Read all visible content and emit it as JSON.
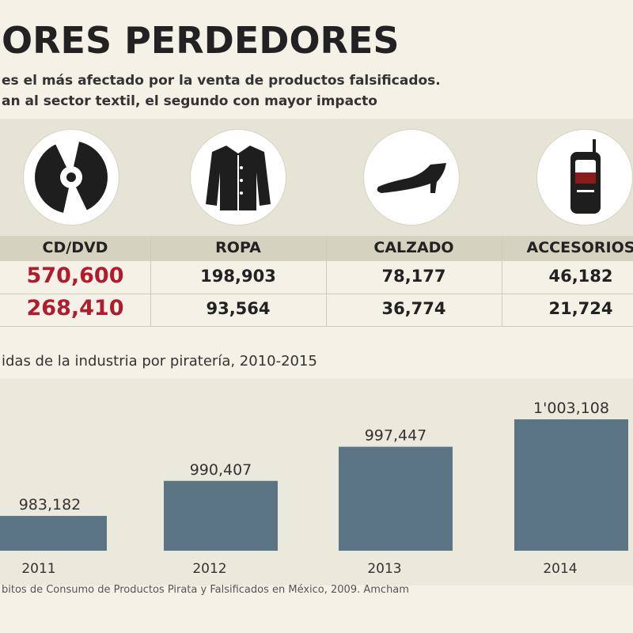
{
  "header": {
    "title": "ORES PERDEDORES",
    "subtitle_1": "es el más afectado por la venta de productos falsificados.",
    "subtitle_2": "an al sector textil, el segundo con mayor impacto"
  },
  "icons": [
    "cd-dvd-icon",
    "jacket-icon",
    "high-heel-shoe-icon",
    "cell-phone-icon"
  ],
  "table": {
    "columns": [
      "CD/DVD",
      "ROPA",
      "CALZADO",
      "ACCESORIOS"
    ],
    "rows": [
      [
        "570,600",
        "198,903",
        "78,177",
        "46,182"
      ],
      [
        "268,410",
        "93,564",
        "36,774",
        "21,724"
      ]
    ]
  },
  "colors": {
    "highlight": "#b01c2e",
    "bar": "#5b7585",
    "background": "#f4f1e6"
  },
  "chart_data": {
    "type": "bar",
    "title": "idas de la industria por piratería, 2010-2015",
    "categories": [
      "2011",
      "2012",
      "2013",
      "2014"
    ],
    "values": [
      983182,
      990407,
      997447,
      1003108
    ],
    "value_labels": [
      "983,182",
      "990,407",
      "997,447",
      "1'003,108"
    ],
    "xlabel": "",
    "ylabel": "",
    "grid": false
  },
  "footer": {
    "source": "bitos de Consumo de Productos Pirata y Falsificados en México, 2009. Amcham"
  }
}
